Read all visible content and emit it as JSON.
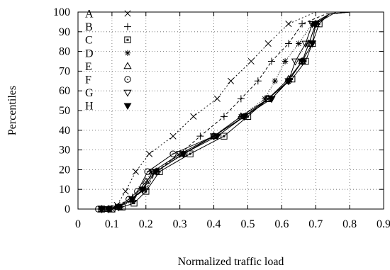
{
  "chart_data": {
    "type": "line",
    "xlabel": "Normalized traffic load",
    "ylabel": "Percentiles",
    "xlim": [
      0,
      0.9
    ],
    "ylim": [
      0,
      100
    ],
    "xticks": [
      "0",
      "0.1",
      "0.2",
      "0.3",
      "0.4",
      "0.5",
      "0.6",
      "0.7",
      "0.8",
      "0.9"
    ],
    "yticks": [
      "0",
      "10",
      "20",
      "30",
      "40",
      "50",
      "60",
      "70",
      "80",
      "90",
      "100"
    ],
    "grid": true,
    "legend_position": "top-left",
    "series": [
      {
        "name": "A",
        "marker": "cross",
        "dash": "2,3",
        "points": [
          [
            0.1,
            0
          ],
          [
            0.115,
            2
          ],
          [
            0.14,
            9
          ],
          [
            0.17,
            19
          ],
          [
            0.21,
            28
          ],
          [
            0.28,
            37
          ],
          [
            0.34,
            47
          ],
          [
            0.41,
            56
          ],
          [
            0.45,
            65
          ],
          [
            0.51,
            75
          ],
          [
            0.56,
            84
          ],
          [
            0.62,
            94
          ],
          [
            0.7,
            100
          ],
          [
            0.8,
            100
          ]
        ]
      },
      {
        "name": "B",
        "marker": "plus",
        "dash": "4,3",
        "points": [
          [
            0.09,
            0
          ],
          [
            0.11,
            1
          ],
          [
            0.16,
            6
          ],
          [
            0.2,
            10
          ],
          [
            0.23,
            19
          ],
          [
            0.3,
            28
          ],
          [
            0.36,
            37
          ],
          [
            0.43,
            47
          ],
          [
            0.48,
            56
          ],
          [
            0.53,
            65
          ],
          [
            0.57,
            75
          ],
          [
            0.62,
            84
          ],
          [
            0.66,
            94
          ],
          [
            0.73,
            99
          ],
          [
            0.8,
            100
          ]
        ]
      },
      {
        "name": "C",
        "marker": "square",
        "dash": "",
        "points": [
          [
            0.07,
            0
          ],
          [
            0.1,
            0
          ],
          [
            0.13,
            1
          ],
          [
            0.165,
            3
          ],
          [
            0.2,
            9
          ],
          [
            0.24,
            19
          ],
          [
            0.33,
            28
          ],
          [
            0.43,
            37
          ],
          [
            0.5,
            47
          ],
          [
            0.56,
            56
          ],
          [
            0.63,
            66
          ],
          [
            0.67,
            75
          ],
          [
            0.69,
            84
          ],
          [
            0.71,
            94
          ],
          [
            0.74,
            99
          ],
          [
            0.8,
            100
          ]
        ]
      },
      {
        "name": "D",
        "marker": "asterisk",
        "dash": "1,2",
        "points": [
          [
            0.07,
            0
          ],
          [
            0.09,
            0
          ],
          [
            0.12,
            1
          ],
          [
            0.16,
            4
          ],
          [
            0.19,
            10
          ],
          [
            0.215,
            19
          ],
          [
            0.31,
            28
          ],
          [
            0.4,
            37
          ],
          [
            0.48,
            47
          ],
          [
            0.55,
            56
          ],
          [
            0.58,
            65
          ],
          [
            0.61,
            75
          ],
          [
            0.65,
            84
          ],
          [
            0.69,
            94
          ],
          [
            0.74,
            99
          ],
          [
            0.8,
            100
          ]
        ]
      },
      {
        "name": "E",
        "marker": "triangle",
        "dash": "",
        "points": [
          [
            0.07,
            0
          ],
          [
            0.09,
            0
          ],
          [
            0.12,
            1
          ],
          [
            0.16,
            5
          ],
          [
            0.2,
            14
          ],
          [
            0.23,
            19
          ],
          [
            0.31,
            28
          ],
          [
            0.4,
            37
          ],
          [
            0.48,
            47
          ],
          [
            0.56,
            56
          ],
          [
            0.62,
            66
          ],
          [
            0.66,
            75
          ],
          [
            0.68,
            84
          ],
          [
            0.7,
            94
          ],
          [
            0.76,
            100
          ],
          [
            0.8,
            100
          ]
        ]
      },
      {
        "name": "F",
        "marker": "circle",
        "dash": "",
        "points": [
          [
            0.06,
            0
          ],
          [
            0.09,
            0
          ],
          [
            0.12,
            1
          ],
          [
            0.15,
            5
          ],
          [
            0.175,
            9
          ],
          [
            0.205,
            19
          ],
          [
            0.28,
            28
          ],
          [
            0.4,
            37
          ],
          [
            0.49,
            47
          ],
          [
            0.56,
            56
          ],
          [
            0.62,
            65
          ],
          [
            0.66,
            75
          ],
          [
            0.68,
            84
          ],
          [
            0.7,
            94
          ],
          [
            0.74,
            99
          ],
          [
            0.8,
            100
          ]
        ]
      },
      {
        "name": "G",
        "marker": "triangle-down",
        "dash": "",
        "points": [
          [
            0.07,
            0
          ],
          [
            0.09,
            0
          ],
          [
            0.12,
            1
          ],
          [
            0.16,
            5
          ],
          [
            0.19,
            10
          ],
          [
            0.22,
            19
          ],
          [
            0.3,
            28
          ],
          [
            0.4,
            37
          ],
          [
            0.49,
            47
          ],
          [
            0.57,
            56
          ],
          [
            0.62,
            65
          ],
          [
            0.64,
            75
          ],
          [
            0.67,
            84
          ],
          [
            0.69,
            94
          ],
          [
            0.74,
            99
          ],
          [
            0.8,
            100
          ]
        ]
      },
      {
        "name": "H",
        "marker": "triangle-filled",
        "dash": "",
        "points": [
          [
            0.07,
            0
          ],
          [
            0.09,
            0
          ],
          [
            0.12,
            1
          ],
          [
            0.16,
            5
          ],
          [
            0.19,
            10
          ],
          [
            0.23,
            19
          ],
          [
            0.31,
            28
          ],
          [
            0.41,
            37
          ],
          [
            0.49,
            47
          ],
          [
            0.57,
            56
          ],
          [
            0.62,
            65
          ],
          [
            0.66,
            75
          ],
          [
            0.69,
            84
          ],
          [
            0.7,
            94
          ],
          [
            0.74,
            99
          ],
          [
            0.8,
            100
          ]
        ]
      }
    ]
  }
}
